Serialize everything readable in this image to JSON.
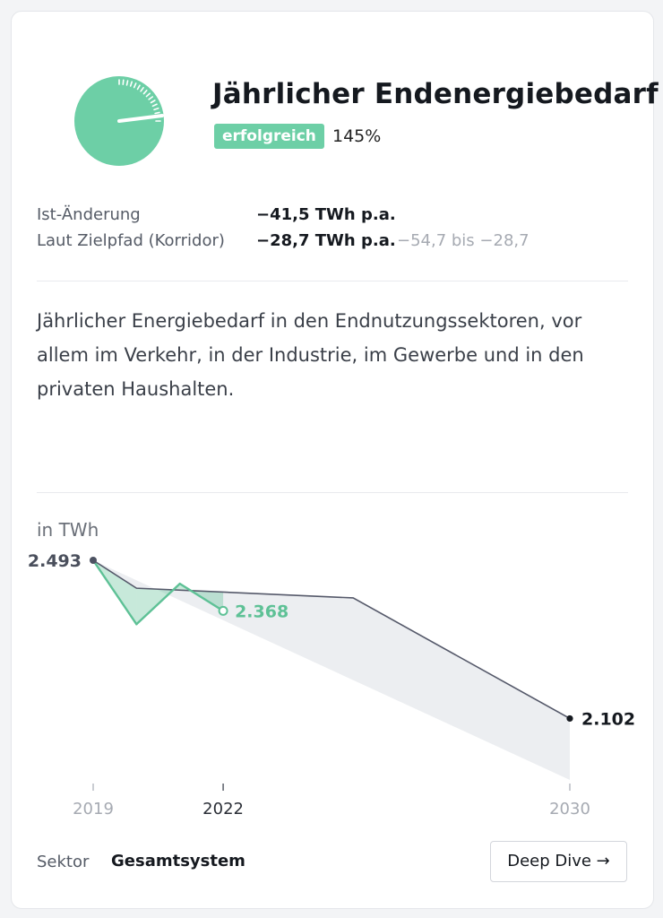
{
  "header": {
    "title": "Jährlicher Endenergiebedarf",
    "status_badge": "erfolgreich",
    "percentage": "145%",
    "gauge_fraction": 1.45
  },
  "metrics": {
    "ist_label": "Ist-Änderung",
    "ist_value": "−41,5 TWh p.a.",
    "ziel_label": "Laut Zielpfad (Korridor)",
    "ziel_value": "−28,7 TWh p.a.",
    "ziel_range": "−54,7 bis −28,7"
  },
  "description": "Jährlicher Energiebedarf in den Endnutzungssektoren, vor allem im Verkehr, in der Industrie, im Gewerbe und in den privaten Haushalten.",
  "footer": {
    "sector_label": "Sektor",
    "sector_value": "Gesamtsystem",
    "deep_dive_label": "Deep Dive →"
  },
  "colors": {
    "accent": "#6dcfa6",
    "ist_line": "#5ec196",
    "ziel_line": "#55596a",
    "corridor": "#eceef1",
    "overshoot": "#f0c24b"
  },
  "chart_data": {
    "type": "line",
    "unit_label": "in TWh",
    "xlim": [
      2019,
      2030
    ],
    "ylim": [
      1950,
      2493
    ],
    "x_ticks": [
      {
        "value": 2019,
        "label": "2019",
        "emphasis": false
      },
      {
        "value": 2022,
        "label": "2022",
        "emphasis": true
      },
      {
        "value": 2030,
        "label": "2030",
        "emphasis": false
      }
    ],
    "series": [
      {
        "name": "Ist",
        "x": [
          2019,
          2020,
          2021,
          2022
        ],
        "y": [
          2493,
          2335,
          2435,
          2368
        ]
      },
      {
        "name": "Zielpfad",
        "x": [
          2019,
          2020,
          2025,
          2030
        ],
        "y": [
          2493,
          2424,
          2400,
          2102
        ]
      }
    ],
    "corridor_lower": {
      "x": [
        2019,
        2030
      ],
      "y": [
        2493,
        1950
      ]
    },
    "annotations": [
      {
        "x": 2019,
        "y": 2493,
        "label": "2.493",
        "series": "Zielpfad"
      },
      {
        "x": 2022,
        "y": 2368,
        "label": "2.368",
        "series": "Ist"
      },
      {
        "x": 2030,
        "y": 2102,
        "label": "2.102",
        "series": "Zielpfad"
      }
    ]
  }
}
